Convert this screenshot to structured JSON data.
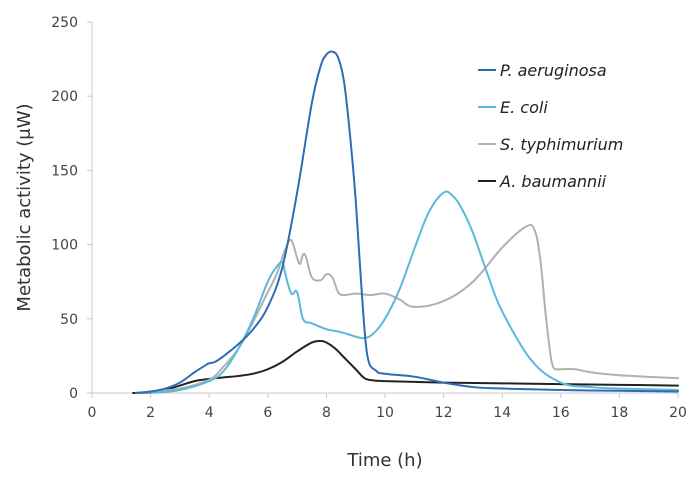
{
  "chart_data": {
    "type": "line",
    "title": "",
    "xlabel": "Time (h)",
    "ylabel": "Metabolic activity (μW)",
    "xlim": [
      0,
      20
    ],
    "ylim": [
      0,
      250
    ],
    "xticks": [
      0,
      2,
      4,
      6,
      8,
      10,
      12,
      14,
      16,
      18,
      20
    ],
    "yticks": [
      0,
      50,
      100,
      150,
      200,
      250
    ],
    "grid": false,
    "legend_position": "top-right",
    "series": [
      {
        "name": "P. aeruginosa",
        "color": "#2e6db4",
        "x": [
          1.5,
          2.0,
          2.5,
          3.0,
          3.5,
          3.9,
          4.0,
          4.2,
          4.5,
          5.0,
          5.5,
          6.0,
          6.5,
          7.0,
          7.5,
          7.8,
          8.0,
          8.2,
          8.4,
          8.6,
          8.8,
          9.0,
          9.2,
          9.4,
          9.7,
          10.0,
          11.0,
          12.0,
          13.0,
          14.0,
          16.0,
          18.0,
          20.0
        ],
        "y": [
          0,
          1,
          3,
          7,
          14,
          19,
          20,
          21,
          25,
          33,
          43,
          58,
          85,
          135,
          195,
          220,
          228,
          230,
          226,
          210,
          175,
          130,
          70,
          25,
          15,
          13,
          11,
          7,
          4,
          3,
          2,
          1.5,
          1
        ]
      },
      {
        "name": "E. coli",
        "color": "#5bb8db",
        "x": [
          2.0,
          3.0,
          4.0,
          4.5,
          5.0,
          5.5,
          6.0,
          6.3,
          6.5,
          6.6,
          6.8,
          7.0,
          7.2,
          7.5,
          8.0,
          8.5,
          9.0,
          9.3,
          9.6,
          10.0,
          10.5,
          11.0,
          11.5,
          12.0,
          12.3,
          12.6,
          13.0,
          13.5,
          14.0,
          15.0,
          16.0,
          17.0,
          18.0,
          20.0
        ],
        "y": [
          0,
          2,
          8,
          15,
          30,
          50,
          75,
          85,
          88,
          80,
          67,
          68,
          50,
          47,
          43,
          41,
          38,
          37,
          40,
          50,
          70,
          97,
          122,
          135,
          133,
          125,
          108,
          80,
          55,
          22,
          7,
          4,
          3,
          2
        ]
      },
      {
        "name": "S. typhimurium",
        "color": "#b0b0b0",
        "x": [
          1.5,
          2.0,
          3.0,
          4.0,
          4.5,
          5.0,
          5.5,
          6.0,
          6.3,
          6.6,
          6.8,
          7.0,
          7.1,
          7.2,
          7.3,
          7.5,
          7.8,
          8.0,
          8.2,
          8.4,
          8.6,
          9.0,
          9.5,
          10.0,
          10.5,
          11.0,
          12.0,
          13.0,
          14.0,
          14.8,
          15.1,
          15.3,
          15.5,
          15.7,
          15.9,
          16.0,
          16.5,
          17.0,
          18.0,
          20.0
        ],
        "y": [
          0,
          1,
          3,
          9,
          18,
          30,
          48,
          68,
          80,
          97,
          103,
          91,
          87,
          93,
          92,
          78,
          76,
          80,
          78,
          68,
          66,
          67,
          66,
          67,
          63,
          58,
          62,
          75,
          98,
          112,
          110,
          90,
          50,
          20,
          16,
          16,
          16,
          14,
          12,
          10
        ]
      },
      {
        "name": "A. baumannii",
        "color": "#222222",
        "x": [
          1.4,
          2.0,
          2.5,
          3.0,
          3.5,
          4.0,
          4.5,
          5.0,
          5.5,
          6.0,
          6.5,
          7.0,
          7.5,
          7.8,
          8.0,
          8.3,
          8.6,
          9.0,
          9.3,
          9.6,
          10.0,
          11.0,
          12.0,
          14.0,
          16.0,
          18.0,
          20.0
        ],
        "y": [
          0,
          0.5,
          2,
          5,
          8,
          9.5,
          10.5,
          11.5,
          13,
          16,
          21,
          28,
          34,
          35,
          34,
          30,
          24,
          16,
          10,
          8.5,
          8,
          7.5,
          7,
          6.5,
          6,
          5.5,
          5
        ]
      }
    ]
  }
}
